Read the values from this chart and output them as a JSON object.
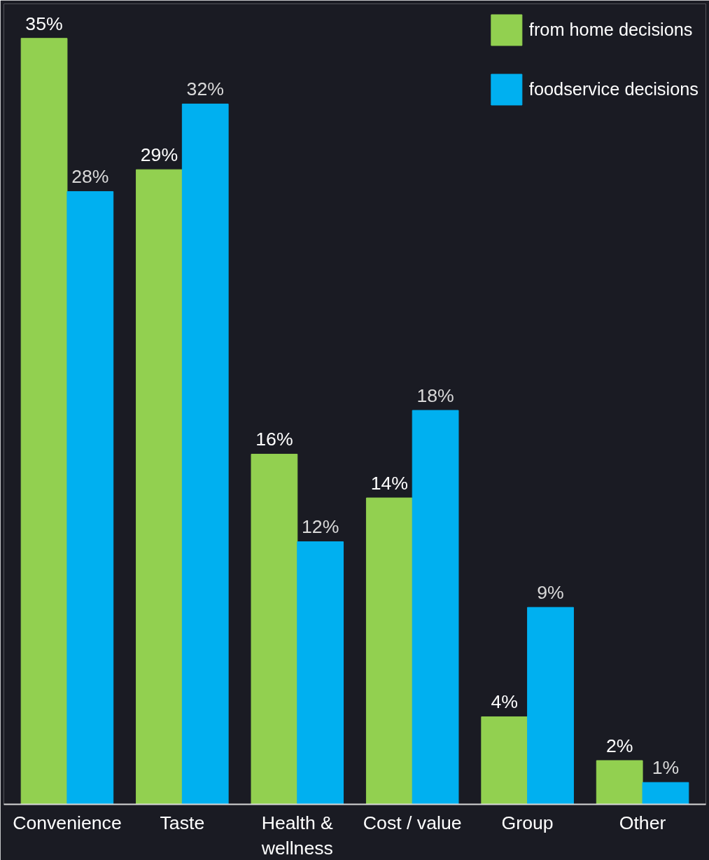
{
  "chart_data": {
    "type": "bar",
    "categories": [
      "Convenience",
      "Taste",
      "Health & wellness",
      "Cost / value",
      "Group",
      "Other"
    ],
    "series": [
      {
        "name": "from home decisions",
        "color": "#92d050",
        "values": [
          35,
          29,
          16,
          14,
          4,
          2
        ],
        "value_labels": [
          "35%",
          "29%",
          "16%",
          "14%",
          "4%",
          "2%"
        ]
      },
      {
        "name": "foodservice decisions",
        "color": "#00b0f0",
        "values": [
          28,
          32,
          12,
          18,
          9,
          1
        ],
        "value_labels": [
          "28%",
          "32%",
          "12%",
          "18%",
          "9%",
          "1%"
        ]
      }
    ],
    "legend": "top right",
    "grid": false
  }
}
